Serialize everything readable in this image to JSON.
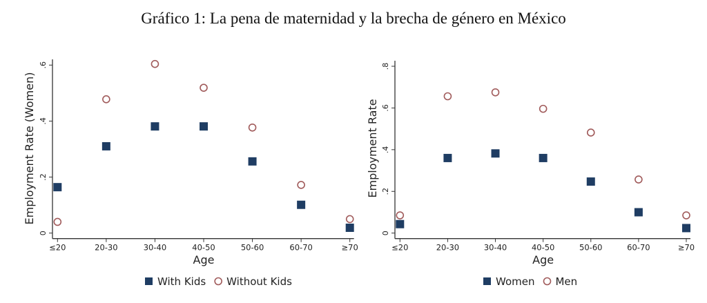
{
  "title": "Gráfico 1: La pena de maternidad y la brecha de género en México",
  "chart_data": [
    {
      "type": "scatter",
      "xlabel": "Age",
      "ylabel": "Employment Rate (Women)",
      "categories": [
        "≤20",
        "20-30",
        "30-40",
        "40-50",
        "50-60",
        "60-70",
        "≥70"
      ],
      "ylim": [
        0,
        0.6
      ],
      "yticks": [
        0,
        0.2,
        0.4,
        0.6
      ],
      "ytick_labels": [
        "0",
        ".2",
        ".4",
        ".6"
      ],
      "grid": false,
      "legend_position": "bottom",
      "series": [
        {
          "name": "With Kids",
          "marker": "filled-square",
          "color": "#1f3d63",
          "values": [
            0.164,
            0.31,
            0.381,
            0.381,
            0.256,
            0.101,
            0.019
          ]
        },
        {
          "name": "Without Kids",
          "marker": "hollow-circle",
          "color": "#a05a5a",
          "values": [
            0.04,
            0.478,
            0.604,
            0.519,
            0.377,
            0.172,
            0.05
          ]
        }
      ]
    },
    {
      "type": "scatter",
      "xlabel": "Age",
      "ylabel": "Employment Rate",
      "categories": [
        "≤20",
        "20-30",
        "30-40",
        "40-50",
        "50-60",
        "60-70",
        "≥70"
      ],
      "ylim": [
        0,
        0.8
      ],
      "yticks": [
        0,
        0.2,
        0.4,
        0.6,
        0.8
      ],
      "ytick_labels": [
        "0",
        ".2",
        ".4",
        ".6",
        ".8"
      ],
      "grid": false,
      "legend_position": "bottom",
      "series": [
        {
          "name": "Women",
          "marker": "filled-square",
          "color": "#1f3d63",
          "values": [
            0.043,
            0.36,
            0.382,
            0.36,
            0.247,
            0.1,
            0.024
          ]
        },
        {
          "name": "Men",
          "marker": "hollow-circle",
          "color": "#a05a5a",
          "values": [
            0.085,
            0.656,
            0.675,
            0.596,
            0.482,
            0.257,
            0.085
          ]
        }
      ]
    }
  ]
}
